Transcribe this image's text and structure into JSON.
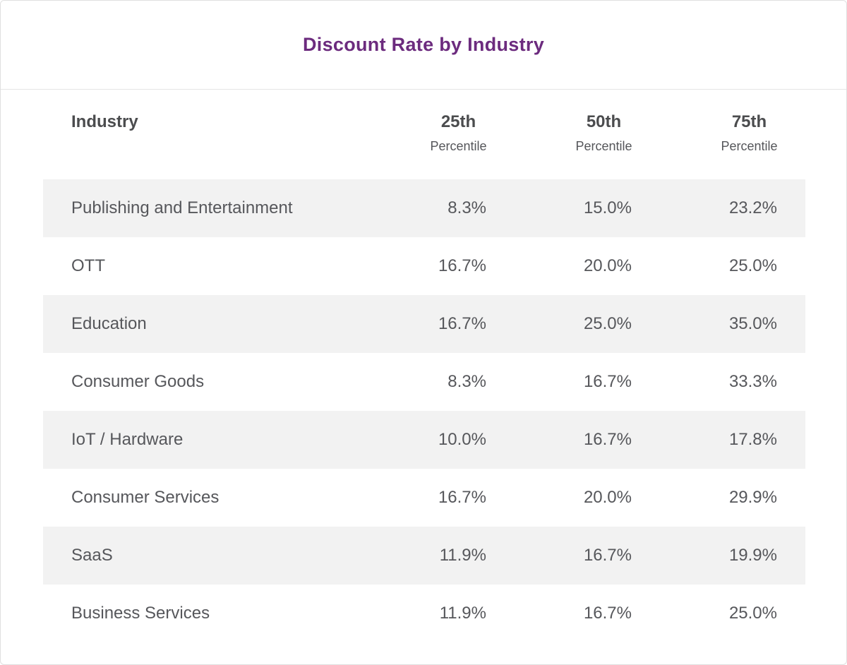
{
  "card": {
    "title": "Discount Rate by Industry",
    "accent_color": "#6C2B7E",
    "stripe_color": "#f2f2f2",
    "border_color": "#dfdfdf"
  },
  "table": {
    "columns": {
      "industry": "Industry",
      "p25": {
        "label": "25th",
        "sub": "Percentile"
      },
      "p50": {
        "label": "50th",
        "sub": "Percentile"
      },
      "p75": {
        "label": "75th",
        "sub": "Percentile"
      }
    },
    "rows": [
      {
        "industry": "Publishing and Entertainment",
        "p25": "8.3%",
        "p50": "15.0%",
        "p75": "23.2%"
      },
      {
        "industry": "OTT",
        "p25": "16.7%",
        "p50": "20.0%",
        "p75": "25.0%"
      },
      {
        "industry": "Education",
        "p25": "16.7%",
        "p50": "25.0%",
        "p75": "35.0%"
      },
      {
        "industry": "Consumer Goods",
        "p25": "8.3%",
        "p50": "16.7%",
        "p75": "33.3%"
      },
      {
        "industry": "IoT / Hardware",
        "p25": "10.0%",
        "p50": "16.7%",
        "p75": "17.8%"
      },
      {
        "industry": "Consumer Services",
        "p25": "16.7%",
        "p50": "20.0%",
        "p75": "29.9%"
      },
      {
        "industry": "SaaS",
        "p25": "11.9%",
        "p50": "16.7%",
        "p75": "19.9%"
      },
      {
        "industry": "Business Services",
        "p25": "11.9%",
        "p50": "16.7%",
        "p75": "25.0%"
      }
    ]
  },
  "chart_data": {
    "type": "table",
    "title": "Discount Rate by Industry",
    "columns": [
      "Industry",
      "25th Percentile",
      "50th Percentile",
      "75th Percentile"
    ],
    "rows": [
      [
        "Publishing and Entertainment",
        "8.3%",
        "15.0%",
        "23.2%"
      ],
      [
        "OTT",
        "16.7%",
        "20.0%",
        "25.0%"
      ],
      [
        "Education",
        "16.7%",
        "25.0%",
        "35.0%"
      ],
      [
        "Consumer Goods",
        "8.3%",
        "16.7%",
        "33.3%"
      ],
      [
        "IoT / Hardware",
        "10.0%",
        "16.7%",
        "17.8%"
      ],
      [
        "Consumer Services",
        "16.7%",
        "20.0%",
        "29.9%"
      ],
      [
        "SaaS",
        "11.9%",
        "16.7%",
        "19.9%"
      ],
      [
        "Business Services",
        "11.9%",
        "16.7%",
        "25.0%"
      ]
    ]
  }
}
